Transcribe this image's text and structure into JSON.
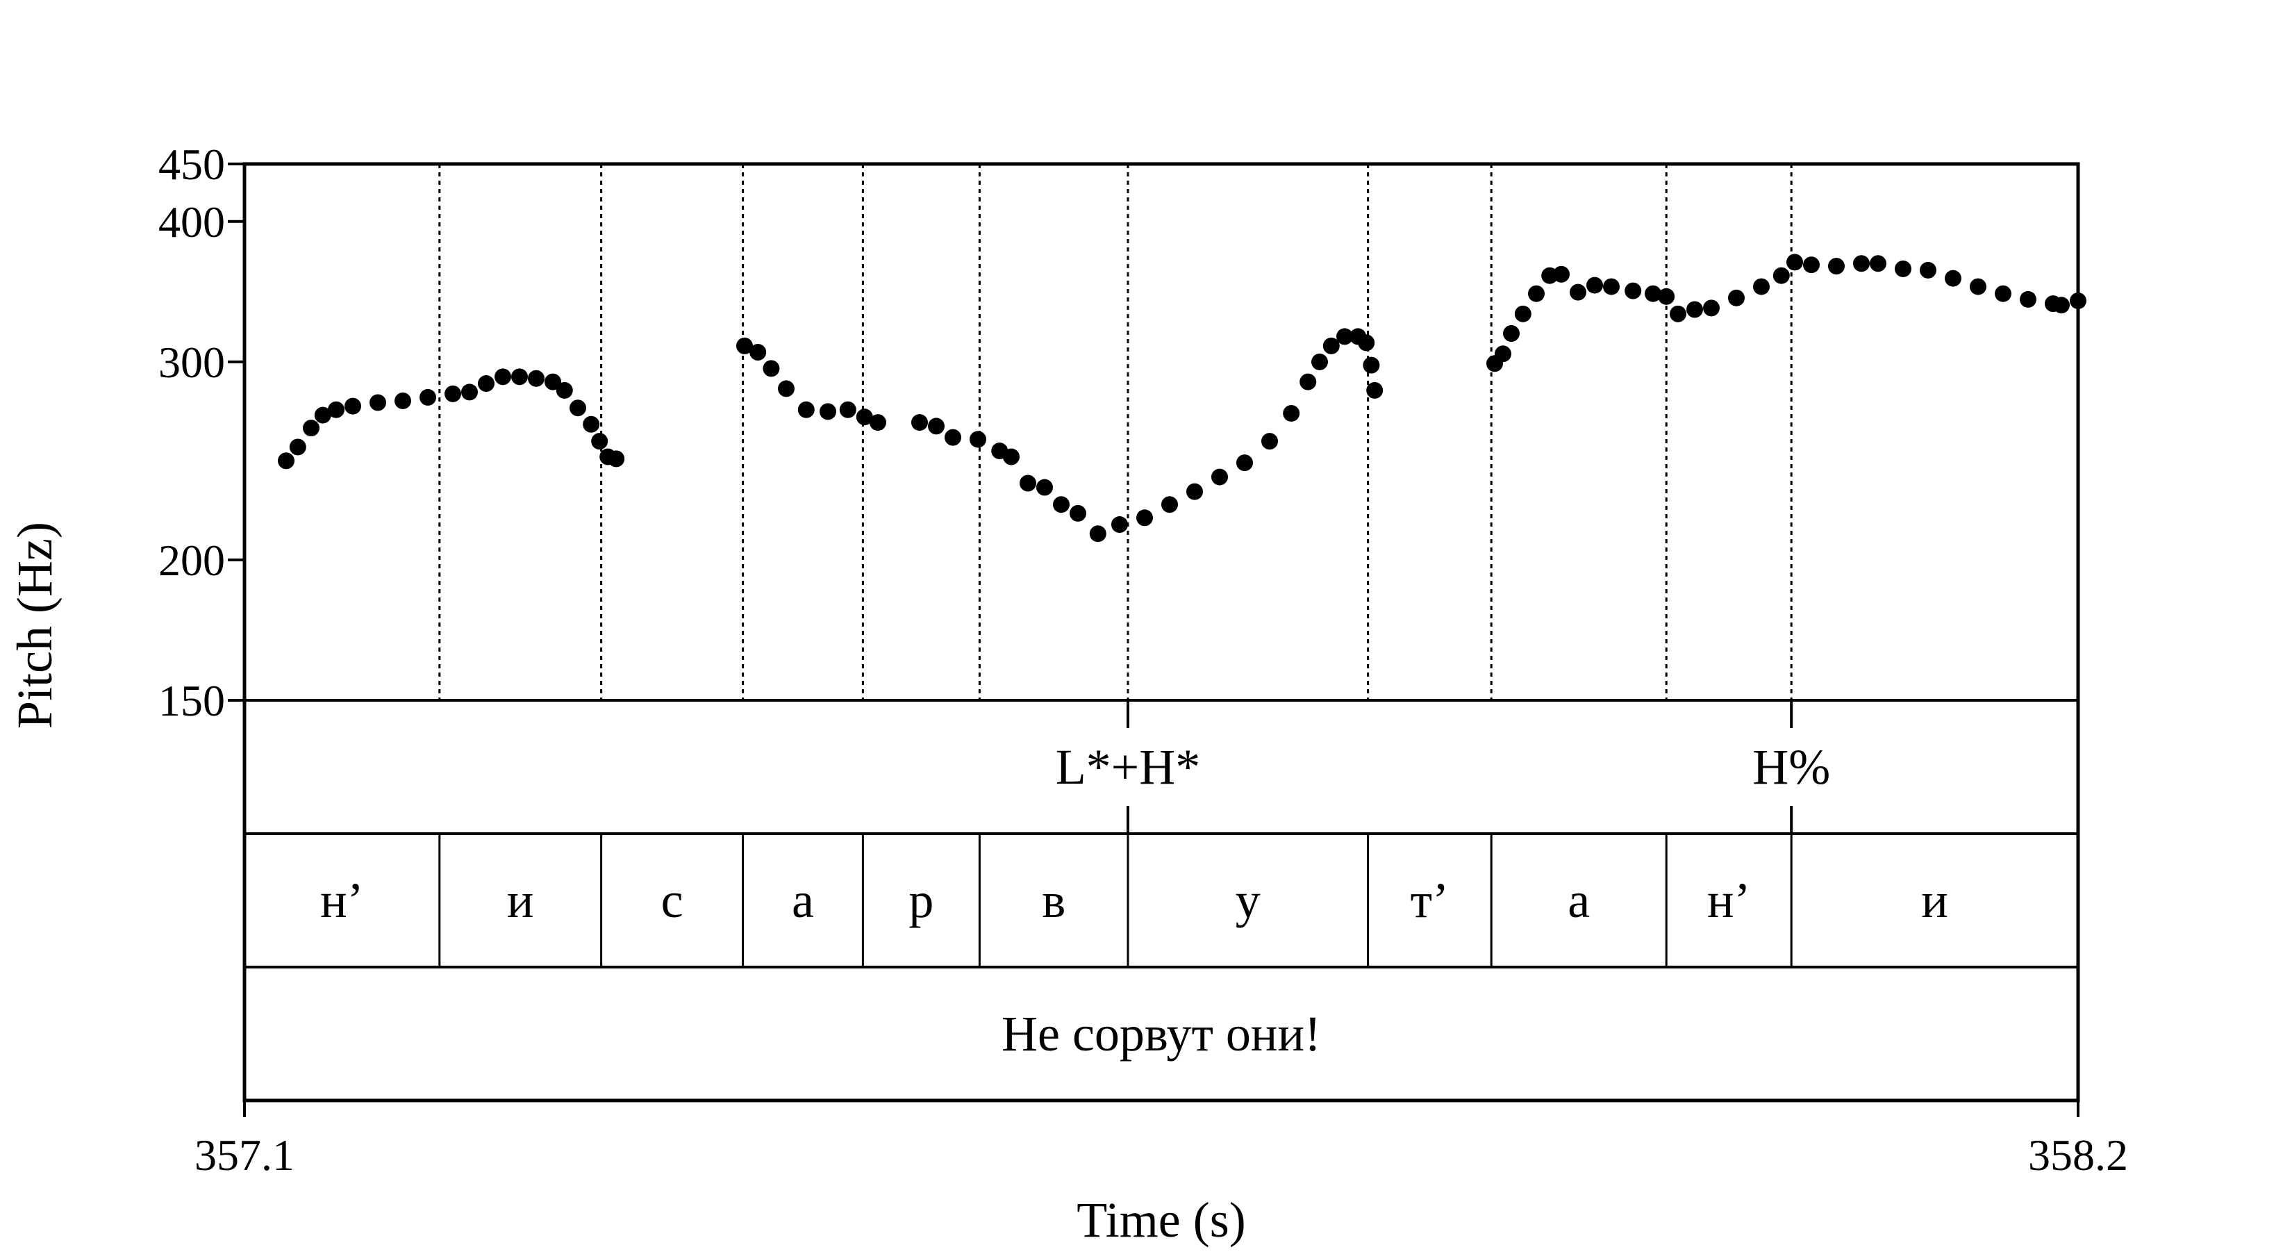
{
  "chart_data": {
    "type": "scatter",
    "xlabel": "Time (s)",
    "ylabel": "Pitch (Hz)",
    "xlim": [
      357.1,
      358.2
    ],
    "ylim": [
      150,
      450
    ],
    "y_scale": "log",
    "y_ticks": [
      150,
      200,
      300,
      400,
      450
    ],
    "x_ticks": [
      357.1,
      358.2
    ],
    "x_tick_labels": [
      "357.1",
      "358.2"
    ],
    "y_tick_labels": [
      "150",
      "200",
      "300",
      "400",
      "450"
    ],
    "boundaries": [
      357.217,
      357.314,
      357.399,
      357.471,
      357.541,
      357.63,
      357.774,
      357.848,
      357.953,
      358.028
    ],
    "tone_tier": [
      {
        "t": 357.63,
        "label": "L*+H*"
      },
      {
        "t": 358.028,
        "label": "H%"
      }
    ],
    "segment_tier": [
      "н’",
      "и",
      "с",
      "а",
      "р",
      "в",
      "у",
      "т’",
      "а",
      "н’",
      "и"
    ],
    "word_tier": [
      "Не сорвут они!"
    ],
    "series": [
      {
        "points": [
          [
            357.125,
            245
          ],
          [
            357.132,
            252
          ],
          [
            357.14,
            262
          ],
          [
            357.147,
            269
          ],
          [
            357.155,
            272
          ],
          [
            357.165,
            274
          ],
          [
            357.18,
            276
          ],
          [
            357.195,
            277
          ],
          [
            357.21,
            279
          ],
          [
            357.225,
            281
          ],
          [
            357.235,
            282
          ],
          [
            357.245,
            287
          ],
          [
            357.255,
            291
          ],
          [
            357.265,
            291
          ],
          [
            357.275,
            290
          ],
          [
            357.285,
            288
          ],
          [
            357.292,
            283
          ],
          [
            357.3,
            273
          ],
          [
            357.308,
            264
          ],
          [
            357.313,
            255
          ],
          [
            357.318,
            247
          ],
          [
            357.323,
            246
          ],
          [
            357.4,
            310
          ],
          [
            357.408,
            306
          ],
          [
            357.416,
            296
          ],
          [
            357.425,
            284
          ],
          [
            357.437,
            272
          ],
          [
            357.45,
            271
          ],
          [
            357.462,
            272
          ],
          [
            357.472,
            268
          ],
          [
            357.48,
            265
          ],
          [
            357.505,
            265
          ],
          [
            357.515,
            263
          ],
          [
            357.525,
            257
          ],
          [
            357.54,
            256
          ],
          [
            357.553,
            250
          ],
          [
            357.56,
            247
          ],
          [
            357.57,
            234
          ],
          [
            357.58,
            232
          ],
          [
            357.59,
            224
          ],
          [
            357.6,
            220
          ],
          [
            357.612,
            211
          ],
          [
            357.625,
            215
          ],
          [
            357.64,
            218
          ],
          [
            357.655,
            224
          ],
          [
            357.67,
            230
          ],
          [
            357.685,
            237
          ],
          [
            357.7,
            244
          ],
          [
            357.715,
            255
          ],
          [
            357.728,
            270
          ],
          [
            357.738,
            288
          ],
          [
            357.745,
            300
          ],
          [
            357.752,
            310
          ],
          [
            357.76,
            316
          ],
          [
            357.768,
            316
          ],
          [
            357.773,
            312
          ],
          [
            357.776,
            298
          ],
          [
            357.778,
            283
          ],
          [
            357.85,
            299
          ],
          [
            357.855,
            305
          ],
          [
            357.86,
            318
          ],
          [
            357.867,
            331
          ],
          [
            357.875,
            345
          ],
          [
            357.883,
            358
          ],
          [
            357.89,
            359
          ],
          [
            357.9,
            346
          ],
          [
            357.91,
            351
          ],
          [
            357.92,
            350
          ],
          [
            357.933,
            347
          ],
          [
            357.945,
            345
          ],
          [
            357.953,
            343
          ],
          [
            357.96,
            331
          ],
          [
            357.97,
            334
          ],
          [
            357.98,
            335
          ],
          [
            357.995,
            342
          ],
          [
            358.01,
            350
          ],
          [
            358.022,
            358
          ],
          [
            358.03,
            368
          ],
          [
            358.04,
            366
          ],
          [
            358.055,
            365
          ],
          [
            358.07,
            367
          ],
          [
            358.08,
            367
          ],
          [
            358.095,
            363
          ],
          [
            358.11,
            362
          ],
          [
            358.125,
            356
          ],
          [
            358.14,
            350
          ],
          [
            358.155,
            345
          ],
          [
            358.17,
            341
          ],
          [
            358.185,
            338
          ],
          [
            358.19,
            337
          ],
          [
            358.2,
            340
          ]
        ]
      }
    ]
  }
}
